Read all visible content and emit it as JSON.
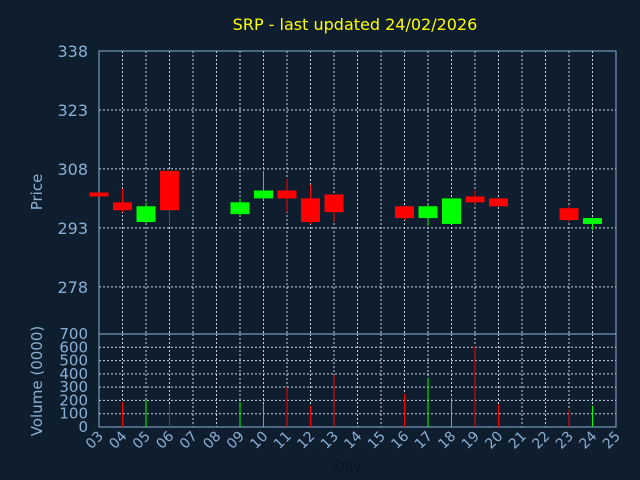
{
  "chart_data": {
    "type": "candlestick",
    "title": "SRP - last updated 24/02/2026",
    "xlabel": "Day",
    "price_ylabel": "Price",
    "volume_ylabel": "Volume (0000)",
    "price_yticks": [
      278,
      293,
      308,
      323,
      338
    ],
    "price_ylim": [
      266,
      338
    ],
    "volume_yticks": [
      0,
      100,
      200,
      300,
      400,
      500,
      600,
      700
    ],
    "volume_ylim": [
      0,
      700
    ],
    "x_ticks": [
      "03",
      "04",
      "05",
      "06",
      "07",
      "08",
      "09",
      "10",
      "11",
      "12",
      "13",
      "14",
      "15",
      "16",
      "17",
      "18",
      "19",
      "20",
      "21",
      "22",
      "23",
      "24",
      "25"
    ],
    "colors": {
      "up": "#00ff00",
      "down": "#ff0000",
      "title": "#ffff00",
      "axis": "#8ab0d4"
    },
    "candles": [
      {
        "day": "03",
        "open": 302.0,
        "close": 301.0,
        "high": 302.0,
        "low": 301.0,
        "volume": 0
      },
      {
        "day": "04",
        "open": 299.5,
        "close": 297.5,
        "high": 303.0,
        "low": 297.0,
        "volume": 190
      },
      {
        "day": "05",
        "open": 294.5,
        "close": 298.5,
        "high": 299.5,
        "low": 294.0,
        "volume": 200
      },
      {
        "day": "06",
        "open": 307.5,
        "close": 297.5,
        "high": 307.5,
        "low": 293.5,
        "volume": 170
      },
      {
        "day": "09",
        "open": 296.5,
        "close": 299.5,
        "high": 300.5,
        "low": 296.0,
        "volume": 190
      },
      {
        "day": "10",
        "open": 300.5,
        "close": 302.5,
        "high": 307.5,
        "low": 300.0,
        "volume": 170
      },
      {
        "day": "11",
        "open": 302.5,
        "close": 300.5,
        "high": 305.5,
        "low": 297.0,
        "volume": 300
      },
      {
        "day": "12",
        "open": 300.5,
        "close": 294.5,
        "high": 304.0,
        "low": 294.0,
        "volume": 160
      },
      {
        "day": "13",
        "open": 301.5,
        "close": 297.0,
        "high": 301.5,
        "low": 294.5,
        "volume": 390
      },
      {
        "day": "16",
        "open": 298.5,
        "close": 295.5,
        "high": 298.5,
        "low": 295.0,
        "volume": 250
      },
      {
        "day": "17",
        "open": 295.5,
        "close": 298.5,
        "high": 299.0,
        "low": 293.5,
        "volume": 370
      },
      {
        "day": "18",
        "open": 294.0,
        "close": 300.5,
        "high": 300.5,
        "low": 294.0,
        "volume": 220
      },
      {
        "day": "19",
        "open": 301.0,
        "close": 299.5,
        "high": 302.5,
        "low": 299.0,
        "volume": 610
      },
      {
        "day": "20",
        "open": 300.5,
        "close": 298.5,
        "high": 300.5,
        "low": 298.5,
        "volume": 170
      },
      {
        "day": "23",
        "open": 298.0,
        "close": 295.0,
        "high": 298.5,
        "low": 294.5,
        "volume": 130
      },
      {
        "day": "24",
        "open": 294.0,
        "close": 295.5,
        "high": 295.5,
        "low": 292.5,
        "volume": 160
      }
    ]
  }
}
